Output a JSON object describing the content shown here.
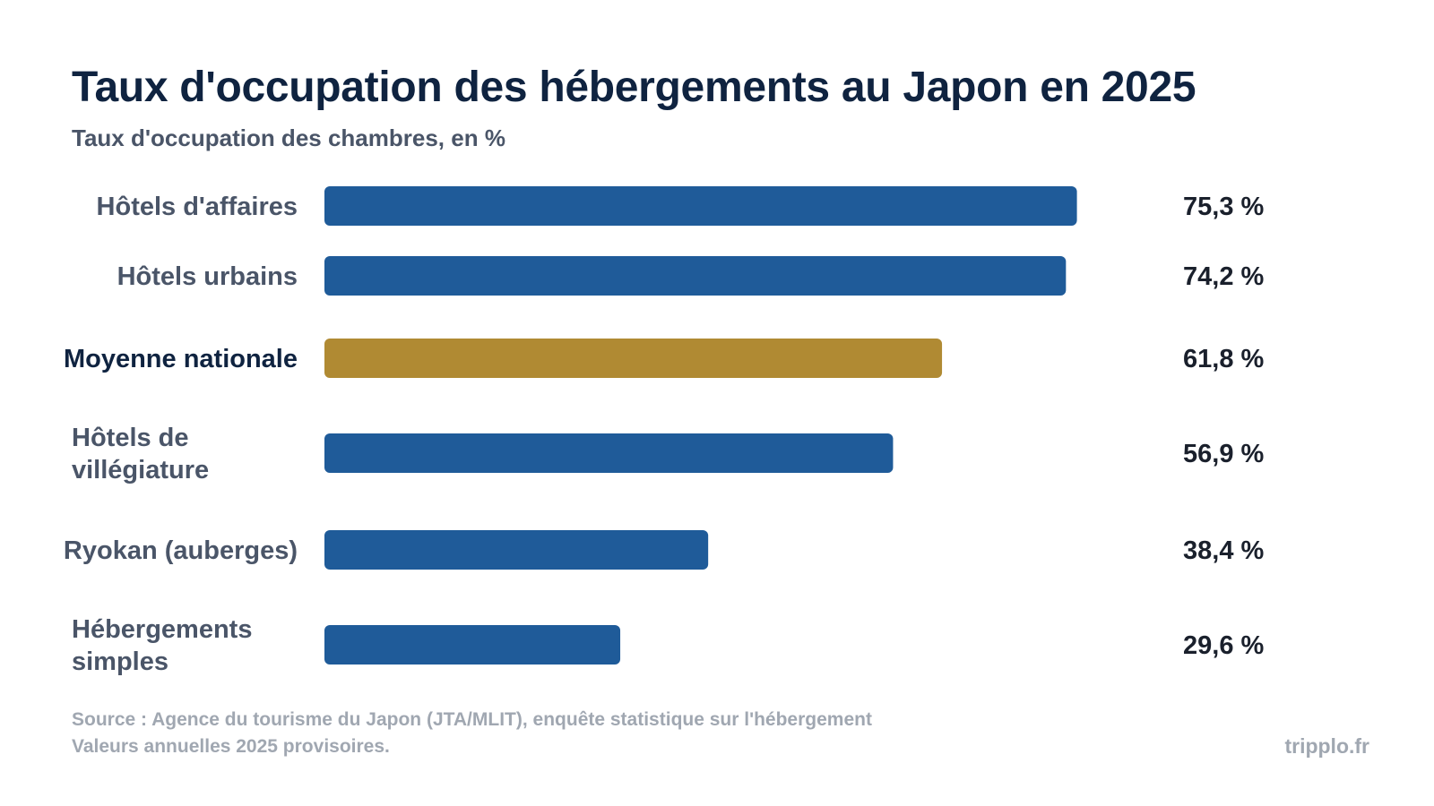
{
  "header": {
    "title": "Taux d'occupation des hébergements au Japon en 2025",
    "subtitle": "Taux d'occupation des chambres, en %"
  },
  "chart_data": {
    "type": "bar",
    "orientation": "horizontal",
    "categories": [
      "Hôtels d'affaires",
      "Hôtels urbains",
      "Moyenne nationale",
      "Hôtels de villégiature",
      "Ryokan (auberges)",
      "Hébergements simples"
    ],
    "values": [
      75.3,
      74.2,
      61.8,
      56.9,
      38.4,
      29.6
    ],
    "value_labels": [
      "75,3 %",
      "74,2 %",
      "61,8 %",
      "56,9 %",
      "38,4 %",
      "29,6 %"
    ],
    "highlight_index": 2,
    "xlim": [
      0,
      100
    ],
    "grid": false,
    "legend": "none",
    "colors": {
      "bar": "#1f5b99",
      "highlight": "#b08a33",
      "category_label": "#4a5568",
      "highlight_label": "#0f2340",
      "value_label": "#1a202c"
    }
  },
  "footer": {
    "source": "Source : Agence du tourisme du Japon (JTA/MLIT), enquête statistique sur l'hébergement",
    "note": "Valeurs annuelles 2025 provisoires.",
    "brand": "tripplo.fr"
  }
}
